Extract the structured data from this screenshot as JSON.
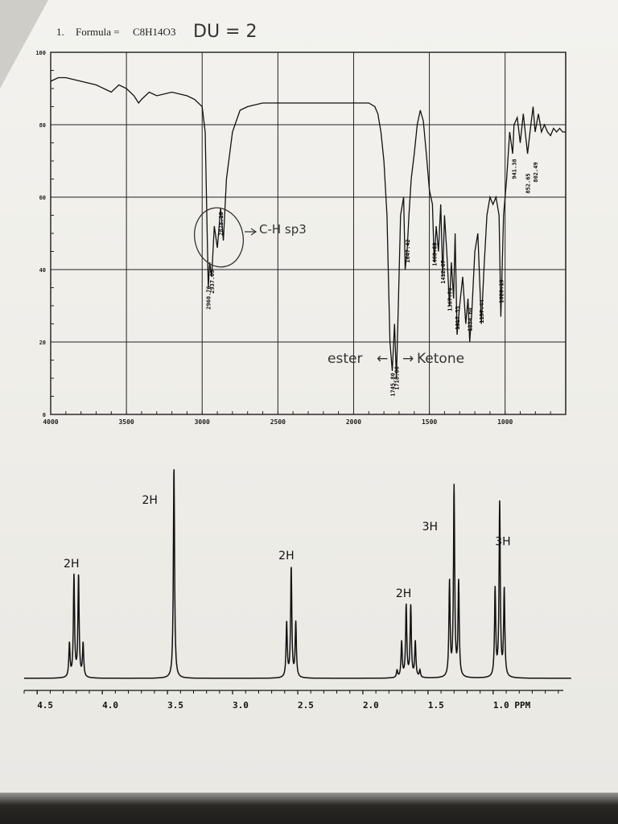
{
  "header": {
    "problem_number": "1.",
    "formula_label": "Formula = ",
    "formula": "C8H14O3",
    "du_note": "DU = 2"
  },
  "annotations": {
    "sp3_note": "C-H sp3",
    "ester_note": "ester",
    "ketone_note": "Ketone",
    "arrow_left": "←",
    "arrow_right": "→"
  },
  "chart_data": [
    {
      "type": "line",
      "ylim": [
        0,
        100
      ],
      "xlim": [
        4000,
        600
      ],
      "x_ticks": [
        "4000",
        "3500",
        "3000",
        "2500",
        "2000",
        "1500",
        "1000"
      ],
      "y_ticks": [
        "100",
        "80",
        "60",
        "40",
        "20",
        "0"
      ],
      "grid": true,
      "peak_labels": [
        "2960.76",
        "2937.65",
        "2878.18",
        "1745.80",
        "1718.86",
        "1647.42",
        "1468.89",
        "1412.67",
        "1367.70",
        "1317.55",
        "1234.60",
        "1157.44",
        "1028.19",
        "941.38",
        "852.65",
        "802.49"
      ],
      "series": [
        {
          "x": [
            4000,
            3950,
            3900,
            3800,
            3700,
            3650,
            3600,
            3550,
            3500,
            3450,
            3420,
            3400,
            3350,
            3300,
            3200,
            3100,
            3050,
            3000,
            2980,
            2960,
            2950,
            2937,
            2920,
            2900,
            2878,
            2860,
            2840,
            2800,
            2750,
            2700,
            2600,
            2500,
            2300,
            2100,
            2000,
            1900,
            1860,
            1840,
            1820,
            1800,
            1780,
            1760,
            1745,
            1730,
            1718,
            1705,
            1690,
            1670,
            1660,
            1647,
            1635,
            1620,
            1600,
            1580,
            1560,
            1540,
            1520,
            1500,
            1480,
            1468,
            1455,
            1440,
            1425,
            1412,
            1400,
            1385,
            1367,
            1355,
            1340,
            1330,
            1317,
            1300,
            1280,
            1260,
            1245,
            1234,
            1220,
            1200,
            1180,
            1157,
            1140,
            1120,
            1100,
            1080,
            1060,
            1040,
            1028,
            1010,
            990,
            970,
            950,
            941,
            920,
            900,
            880,
            852,
            830,
            815,
            802,
            780,
            760,
            740,
            720,
            700,
            680,
            660,
            640,
            620,
            600
          ],
          "y": [
            92,
            93,
            93,
            92,
            91,
            90,
            89,
            91,
            90,
            88,
            86,
            87,
            89,
            88,
            89,
            88,
            87,
            85,
            78,
            35,
            42,
            38,
            52,
            46,
            57,
            48,
            65,
            78,
            84,
            85,
            86,
            86,
            86,
            86,
            86,
            86,
            85,
            83,
            78,
            70,
            55,
            20,
            12,
            25,
            10,
            30,
            55,
            60,
            40,
            45,
            55,
            65,
            72,
            80,
            84,
            81,
            72,
            62,
            58,
            42,
            52,
            45,
            58,
            38,
            55,
            45,
            30,
            42,
            32,
            50,
            22,
            30,
            38,
            25,
            32,
            20,
            28,
            45,
            50,
            25,
            40,
            55,
            60,
            58,
            60,
            55,
            27,
            55,
            65,
            78,
            72,
            80,
            82,
            75,
            83,
            72,
            80,
            85,
            78,
            83,
            78,
            80,
            78,
            77,
            79,
            78,
            79,
            78,
            78
          ]
        }
      ]
    },
    {
      "type": "line",
      "xlim": [
        4.6,
        0.4
      ],
      "x_ticks": [
        "4.5",
        "4.0",
        "3.5",
        "3.0",
        "2.5",
        "2.0",
        "1.5",
        "1.0 PPM"
      ],
      "peaks": [
        {
          "center": 4.2,
          "multiplicity": 4,
          "height": 0.48,
          "integration": "2H"
        },
        {
          "center": 3.45,
          "multiplicity": 1,
          "height": 1.0,
          "integration": "2H"
        },
        {
          "center": 2.55,
          "multiplicity": 3,
          "height": 0.52,
          "integration": "2H"
        },
        {
          "center": 1.65,
          "multiplicity": 6,
          "height": 0.34,
          "integration": "2H"
        },
        {
          "center": 1.3,
          "multiplicity": 3,
          "height": 0.9,
          "integration": "3H"
        },
        {
          "center": 0.95,
          "multiplicity": 3,
          "height": 0.83,
          "integration": "3H"
        }
      ]
    }
  ]
}
